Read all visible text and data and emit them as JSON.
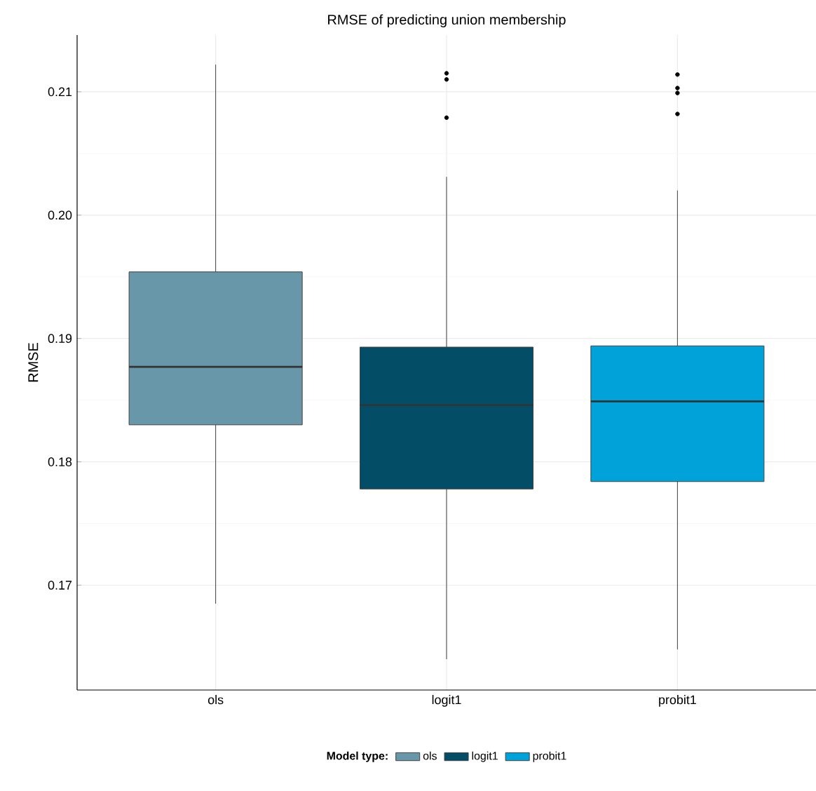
{
  "chart_data": {
    "type": "box",
    "title": "RMSE of predicting union membership",
    "ylabel": "RMSE",
    "legend_title": "Model type:",
    "legend": "bottom",
    "grid": true,
    "categories": [
      "ols",
      "logit1",
      "probit1"
    ],
    "series": [
      {
        "name": "ols",
        "color": "#6897a9",
        "boxes": [
          {
            "low": 0.1685,
            "q1": 0.183,
            "median": 0.1877,
            "q3": 0.1954,
            "high": 0.2122
          },
          null,
          null
        ]
      },
      {
        "name": "logit1",
        "color": "#034e66",
        "boxes": [
          null,
          {
            "low": 0.164,
            "q1": 0.1778,
            "median": 0.1846,
            "q3": 0.1893,
            "high": 0.2031,
            "outliers": [
              0.2115,
              0.211,
              0.2079
            ]
          },
          null
        ]
      },
      {
        "name": "probit1",
        "color": "#00a3d9",
        "boxes": [
          null,
          null,
          {
            "low": 0.1648,
            "q1": 0.1784,
            "median": 0.1849,
            "q3": 0.1894,
            "high": 0.202,
            "outliers": [
              0.2114,
              0.2103,
              0.2099,
              0.2082
            ]
          }
        ]
      }
    ],
    "ylim": [
      0.1615,
      0.2146
    ],
    "yticks": [
      0.17,
      0.18,
      0.19,
      {
        "value": 0.2,
        "label": "0.20"
      },
      0.21
    ]
  }
}
